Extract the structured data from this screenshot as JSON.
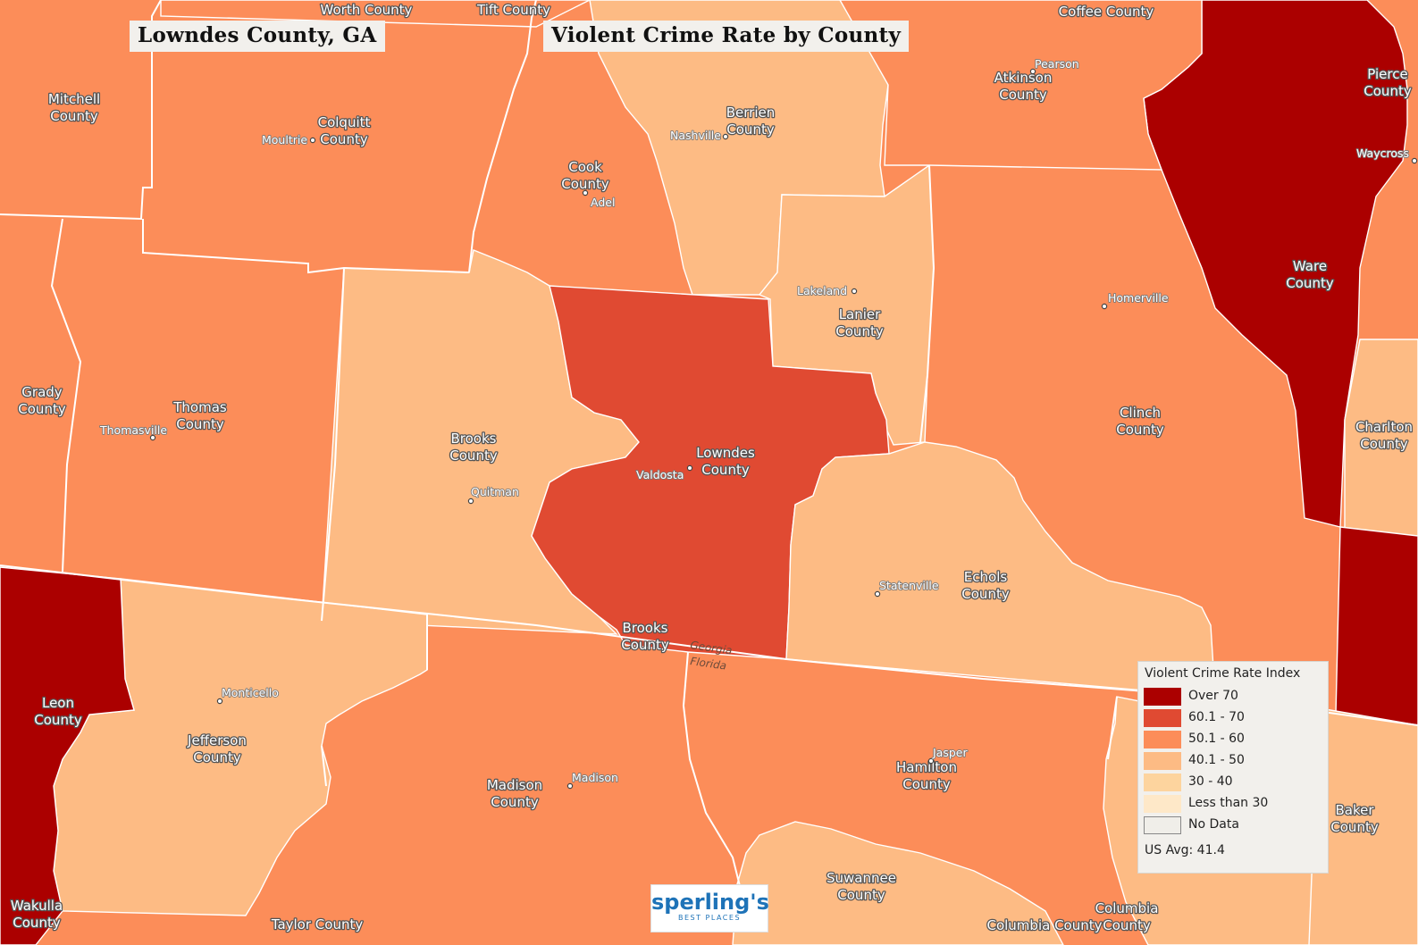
{
  "titles": {
    "location": "Lowndes County, GA",
    "map_title": "Violent Crime Rate by County"
  },
  "colors": {
    "over_70": "#ab0000",
    "c60_70": "#e04a32",
    "c50_60": "#fc8d59",
    "c40_50": "#fdbb84",
    "c30_40": "#fdd49e",
    "lt_30": "#fee8c8",
    "no_data": "#f0eee9"
  },
  "counties": {
    "worth": "Worth County",
    "tift": "Tift County",
    "coffee": "Coffee County",
    "mitchell_1": "Mitchell",
    "mitchell_2": "County",
    "colquitt_1": "Colquitt",
    "colquitt_2": "County",
    "cook_1": "Cook",
    "cook_2": "County",
    "berrien_1": "Berrien",
    "berrien_2": "County",
    "atkinson_1": "Atkinson",
    "atkinson_2": "County",
    "pierce_1": "Pierce",
    "pierce_2": "County",
    "ware_1": "Ware",
    "ware_2": "County",
    "grady_1": "Grady",
    "grady_2": "County",
    "thomas_1": "Thomas",
    "thomas_2": "County",
    "brooks_1": "Brooks",
    "brooks_2": "County",
    "lowndes_1": "Lowndes",
    "lowndes_2": "County",
    "lanier_1": "Lanier",
    "lanier_2": "County",
    "clinch_1": "Clinch",
    "clinch_2": "County",
    "charlton_1": "Charlton",
    "charlton_2": "County",
    "echols_1": "Echols",
    "echols_2": "County",
    "brooks_fl_1": "Brooks",
    "brooks_fl_2": "County",
    "leon_1": "Leon",
    "leon_2": "County",
    "jefferson_1": "Jefferson",
    "jefferson_2": "County",
    "madison_1": "Madison",
    "madison_2": "County",
    "hamilton_1": "Hamilton",
    "hamilton_2": "County",
    "baker_1": "Baker",
    "baker_2": "County",
    "suwannee_1": "Suwannee",
    "suwannee_2": "County",
    "columbia_1": "Columbia",
    "columbia_2": "County",
    "columbia_single": "Columbia County",
    "wakulla_1": "Wakulla",
    "wakulla_2": "County",
    "taylor": "Taylor County"
  },
  "cities": {
    "pearson": "Pearson",
    "moultrie": "Moultrie",
    "nashville": "Nashville",
    "adel": "Adel",
    "waycross": "Waycross",
    "lakeland": "Lakeland",
    "homerville": "Homerville",
    "thomasville": "Thomasville",
    "valdosta": "Valdosta",
    "quitman": "Quitman",
    "statenville": "Statenville",
    "monticello": "Monticello",
    "madison": "Madison",
    "jasper": "Jasper"
  },
  "boundary_labels": {
    "georgia": "Georgia",
    "florida": "Florida"
  },
  "legend": {
    "title": "Violent Crime Rate Index",
    "items": [
      {
        "label": "Over 70"
      },
      {
        "label": "60.1 - 70"
      },
      {
        "label": "50.1 - 60"
      },
      {
        "label": "40.1 - 50"
      },
      {
        "label": "30 - 40"
      },
      {
        "label": "Less than 30"
      },
      {
        "label": "No Data"
      }
    ],
    "us_avg": "US Avg: 41.4"
  },
  "logo": {
    "name": "sperling's",
    "tagline": "BEST PLACES"
  }
}
